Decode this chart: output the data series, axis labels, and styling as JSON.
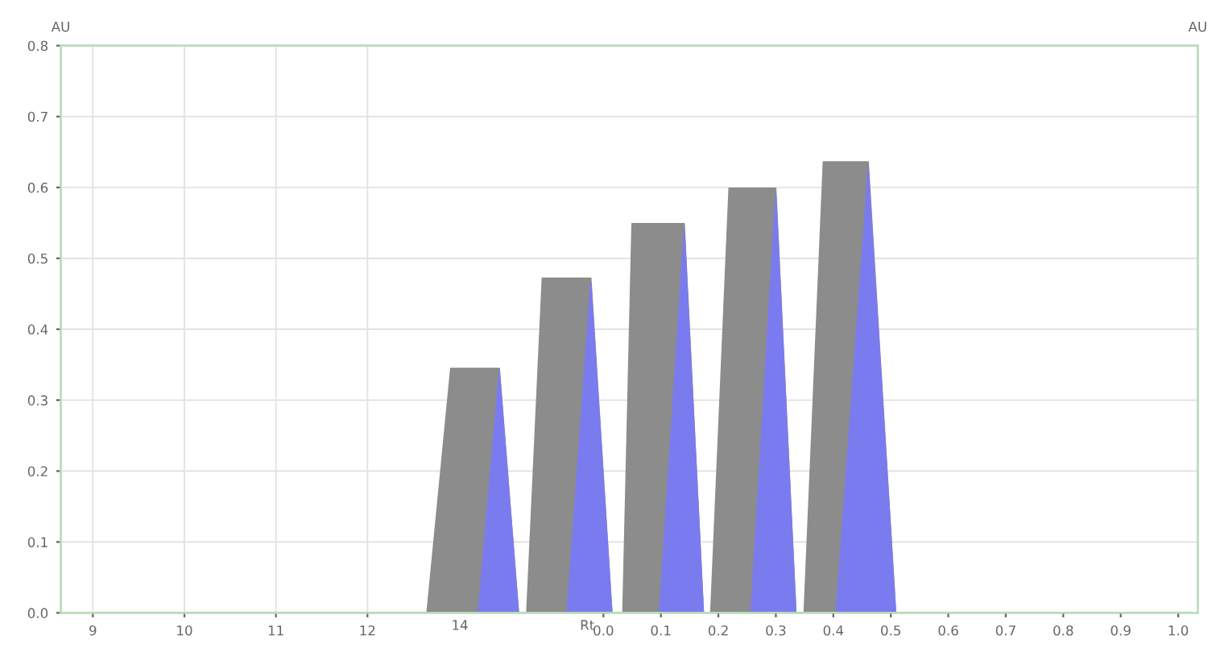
{
  "chart_data": {
    "type": "area",
    "ylabel": "AU",
    "y2label": "AU",
    "xlim": [
      8.65,
      21.07
    ],
    "xticks": [
      9,
      10,
      11,
      12
    ],
    "x2lim": [
      -0.944,
      1.034
    ],
    "x2ticks": [
      {
        "value": 0,
        "label": "0.0"
      },
      0.1,
      0.2,
      0.3,
      0.4,
      0.5,
      0.6,
      0.7,
      0.8,
      0.9,
      {
        "value": 1,
        "label": "1.0"
      }
    ],
    "annotations": [
      "14",
      "Rt"
    ],
    "ylim": [
      0,
      0.8
    ],
    "yticks": [
      {
        "value": 0,
        "label": "0.0"
      },
      0.1,
      0.2,
      0.3,
      0.4,
      0.5,
      0.6,
      0.7,
      0.8
    ],
    "grid": true,
    "series": [
      {
        "color": "#8c8c8c",
        "x": [
          9,
          12.65,
          12.91,
          13.44,
          13.65,
          13.74,
          13.91,
          14.44,
          14.67,
          14.79,
          14.89,
          15.46,
          15.67,
          15.75,
          15.95,
          16.46,
          16.68,
          16.77,
          16.98,
          17.47,
          17.77,
          21
        ],
        "values": [
          0,
          0,
          0.345,
          0.345,
          0,
          0,
          0.472,
          0.472,
          0,
          0,
          0.549,
          0.549,
          0,
          0,
          0.599,
          0.599,
          0,
          0,
          0.636,
          0.636,
          0,
          0
        ]
      },
      {
        "color": "#7b7bf0",
        "x": [
          9,
          13.21,
          13.44,
          13.65,
          14.18,
          14.44,
          14.67,
          15.19,
          15.46,
          15.67,
          16.19,
          16.46,
          16.68,
          17.12,
          17.47,
          17.77,
          21
        ],
        "values": [
          0,
          0,
          0.34,
          0,
          0,
          0.465,
          0,
          0,
          0.54,
          0,
          0,
          0.59,
          0,
          0,
          0.625,
          0,
          0
        ]
      }
    ]
  }
}
